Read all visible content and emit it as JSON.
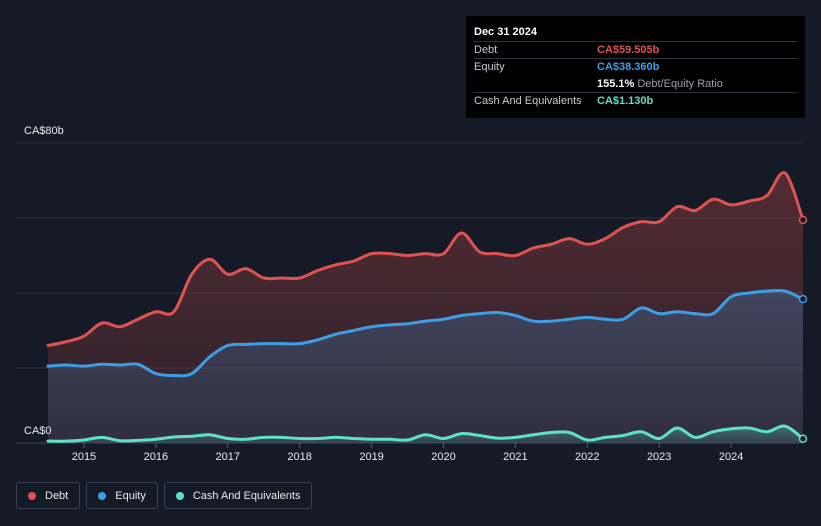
{
  "tooltip": {
    "date": "Dec 31 2024",
    "rows": [
      {
        "label": "Debt",
        "value": "CA$59.505b",
        "color": "#e05252"
      },
      {
        "label": "Equity",
        "value": "CA$38.360b",
        "color": "#3d9ee6"
      },
      {
        "label": "",
        "value": "155.1%",
        "sub": "Debt/Equity Ratio",
        "color": "#ffffff"
      },
      {
        "label": "Cash And Equivalents",
        "value": "CA$1.130b",
        "color": "#5ee1c7"
      }
    ]
  },
  "axis": {
    "y_top_label": "CA$80b",
    "y_bottom_label": "CA$0"
  },
  "legend": [
    {
      "label": "Debt",
      "color": "#e05252"
    },
    {
      "label": "Equity",
      "color": "#3d9ee6"
    },
    {
      "label": "Cash And Equivalents",
      "color": "#5ee1c7"
    }
  ],
  "chart_data": {
    "type": "area",
    "ylim": [
      0,
      80
    ],
    "xlim": [
      2014.5,
      2025.0
    ],
    "x_ticks": [
      "2015",
      "2016",
      "2017",
      "2018",
      "2019",
      "2020",
      "2021",
      "2022",
      "2023",
      "2024"
    ],
    "grid": true,
    "legend_position": "bottom-left",
    "series": [
      {
        "name": "Debt",
        "color": "#e05252",
        "points": [
          [
            2014.5,
            26.0
          ],
          [
            2014.75,
            27.0
          ],
          [
            2015.0,
            28.5
          ],
          [
            2015.25,
            32.0
          ],
          [
            2015.5,
            31.0
          ],
          [
            2015.75,
            33.0
          ],
          [
            2016.0,
            35.0
          ],
          [
            2016.25,
            35.0
          ],
          [
            2016.5,
            45.0
          ],
          [
            2016.75,
            49.0
          ],
          [
            2017.0,
            45.0
          ],
          [
            2017.25,
            46.5
          ],
          [
            2017.5,
            44.0
          ],
          [
            2017.75,
            44.0
          ],
          [
            2018.0,
            44.0
          ],
          [
            2018.25,
            46.0
          ],
          [
            2018.5,
            47.5
          ],
          [
            2018.75,
            48.5
          ],
          [
            2019.0,
            50.5
          ],
          [
            2019.25,
            50.5
          ],
          [
            2019.5,
            50.0
          ],
          [
            2019.75,
            50.5
          ],
          [
            2020.0,
            50.5
          ],
          [
            2020.25,
            56.0
          ],
          [
            2020.5,
            51.0
          ],
          [
            2020.75,
            50.5
          ],
          [
            2021.0,
            50.0
          ],
          [
            2021.25,
            52.0
          ],
          [
            2021.5,
            53.0
          ],
          [
            2021.75,
            54.5
          ],
          [
            2022.0,
            53.0
          ],
          [
            2022.25,
            54.5
          ],
          [
            2022.5,
            57.5
          ],
          [
            2022.75,
            59.0
          ],
          [
            2023.0,
            59.0
          ],
          [
            2023.25,
            63.0
          ],
          [
            2023.5,
            62.0
          ],
          [
            2023.75,
            65.0
          ],
          [
            2024.0,
            63.5
          ],
          [
            2024.25,
            64.5
          ],
          [
            2024.5,
            66.0
          ],
          [
            2024.75,
            72.0
          ],
          [
            2025.0,
            59.505
          ]
        ]
      },
      {
        "name": "Equity",
        "color": "#3d9ee6",
        "points": [
          [
            2014.5,
            20.5
          ],
          [
            2014.75,
            20.8
          ],
          [
            2015.0,
            20.5
          ],
          [
            2015.25,
            21.0
          ],
          [
            2015.5,
            20.8
          ],
          [
            2015.75,
            21.0
          ],
          [
            2016.0,
            18.5
          ],
          [
            2016.25,
            18.0
          ],
          [
            2016.5,
            18.5
          ],
          [
            2016.75,
            23.0
          ],
          [
            2017.0,
            26.0
          ],
          [
            2017.25,
            26.3
          ],
          [
            2017.5,
            26.5
          ],
          [
            2017.75,
            26.5
          ],
          [
            2018.0,
            26.5
          ],
          [
            2018.25,
            27.5
          ],
          [
            2018.5,
            29.0
          ],
          [
            2018.75,
            30.0
          ],
          [
            2019.0,
            31.0
          ],
          [
            2019.25,
            31.5
          ],
          [
            2019.5,
            31.8
          ],
          [
            2019.75,
            32.5
          ],
          [
            2020.0,
            33.0
          ],
          [
            2020.25,
            34.0
          ],
          [
            2020.5,
            34.5
          ],
          [
            2020.75,
            34.8
          ],
          [
            2021.0,
            34.0
          ],
          [
            2021.25,
            32.5
          ],
          [
            2021.5,
            32.5
          ],
          [
            2021.75,
            33.0
          ],
          [
            2022.0,
            33.5
          ],
          [
            2022.25,
            33.0
          ],
          [
            2022.5,
            33.0
          ],
          [
            2022.75,
            36.0
          ],
          [
            2023.0,
            34.5
          ],
          [
            2023.25,
            35.0
          ],
          [
            2023.5,
            34.5
          ],
          [
            2023.75,
            34.5
          ],
          [
            2024.0,
            39.0
          ],
          [
            2024.25,
            40.0
          ],
          [
            2024.5,
            40.5
          ],
          [
            2024.75,
            40.5
          ],
          [
            2025.0,
            38.36
          ]
        ]
      },
      {
        "name": "Cash And Equivalents",
        "color": "#5ee1c7",
        "points": [
          [
            2014.5,
            0.5
          ],
          [
            2014.75,
            0.5
          ],
          [
            2015.0,
            0.8
          ],
          [
            2015.25,
            1.5
          ],
          [
            2015.5,
            0.6
          ],
          [
            2015.75,
            0.7
          ],
          [
            2016.0,
            1.0
          ],
          [
            2016.25,
            1.6
          ],
          [
            2016.5,
            1.8
          ],
          [
            2016.75,
            2.2
          ],
          [
            2017.0,
            1.2
          ],
          [
            2017.25,
            1.0
          ],
          [
            2017.5,
            1.5
          ],
          [
            2017.75,
            1.5
          ],
          [
            2018.0,
            1.2
          ],
          [
            2018.25,
            1.2
          ],
          [
            2018.5,
            1.5
          ],
          [
            2018.75,
            1.2
          ],
          [
            2019.0,
            1.0
          ],
          [
            2019.25,
            1.0
          ],
          [
            2019.5,
            0.8
          ],
          [
            2019.75,
            2.2
          ],
          [
            2020.0,
            1.2
          ],
          [
            2020.25,
            2.5
          ],
          [
            2020.5,
            2.0
          ],
          [
            2020.75,
            1.3
          ],
          [
            2021.0,
            1.5
          ],
          [
            2021.25,
            2.2
          ],
          [
            2021.5,
            2.8
          ],
          [
            2021.75,
            2.8
          ],
          [
            2022.0,
            0.8
          ],
          [
            2022.25,
            1.5
          ],
          [
            2022.5,
            2.0
          ],
          [
            2022.75,
            3.0
          ],
          [
            2023.0,
            1.2
          ],
          [
            2023.25,
            4.0
          ],
          [
            2023.5,
            1.5
          ],
          [
            2023.75,
            3.0
          ],
          [
            2024.0,
            3.8
          ],
          [
            2024.25,
            4.0
          ],
          [
            2024.5,
            3.0
          ],
          [
            2024.75,
            4.5
          ],
          [
            2025.0,
            1.13
          ]
        ]
      }
    ]
  }
}
